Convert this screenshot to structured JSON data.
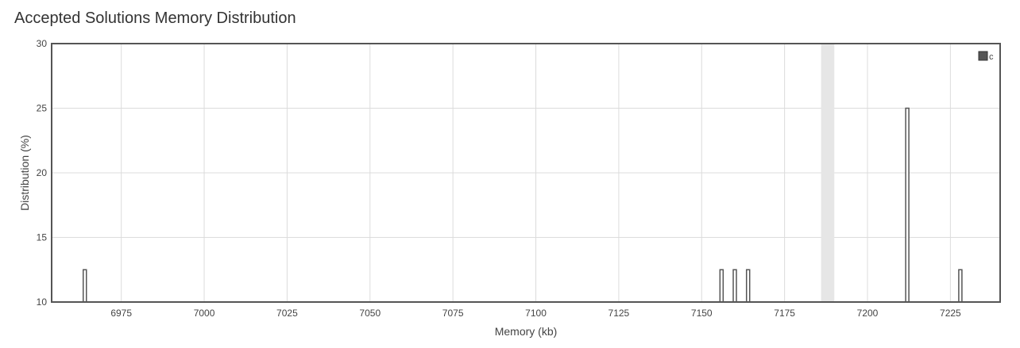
{
  "page": {
    "title": "Accepted Solutions Memory Distribution"
  },
  "chart_data": {
    "type": "bar",
    "xlabel": "Memory (kb)",
    "ylabel": "Distribution (%)",
    "xlim": [
      6954,
      7240
    ],
    "ylim": [
      10,
      30
    ],
    "xticks": [
      6975,
      7000,
      7025,
      7050,
      7075,
      7100,
      7125,
      7150,
      7175,
      7200,
      7225
    ],
    "yticks": [
      10,
      15,
      20,
      25,
      30
    ],
    "grid": true,
    "legend_position": "top-right",
    "highlight_band": [
      7186,
      7190
    ],
    "series": [
      {
        "name": "c",
        "color": "#555555",
        "x": [
          6964,
          7156,
          7160,
          7164,
          7212,
          7228
        ],
        "values": [
          12.5,
          12.5,
          12.5,
          12.5,
          25,
          12.5
        ]
      }
    ]
  }
}
